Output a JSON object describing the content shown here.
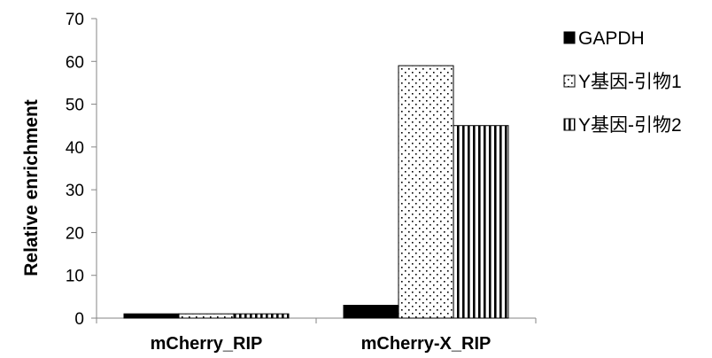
{
  "chart_data": {
    "type": "bar",
    "categories": [
      "mCherry_RIP",
      "mCherry-X_RIP"
    ],
    "series": [
      {
        "name": "GAPDH",
        "values": [
          1,
          3
        ],
        "pattern": "solid",
        "color": "#000000"
      },
      {
        "name": "Y基因-引物1",
        "values": [
          1,
          59
        ],
        "pattern": "dots",
        "color": "#000000"
      },
      {
        "name": "Y基因-引物2",
        "values": [
          1,
          45
        ],
        "pattern": "vertical-stripes",
        "color": "#000000"
      }
    ],
    "ylabel": "Relative enrichment",
    "xlabel": "",
    "ylim": [
      0,
      70
    ],
    "yticks": [
      0,
      10,
      20,
      30,
      40,
      50,
      60,
      70
    ],
    "grid": false,
    "legend_position": "right"
  }
}
